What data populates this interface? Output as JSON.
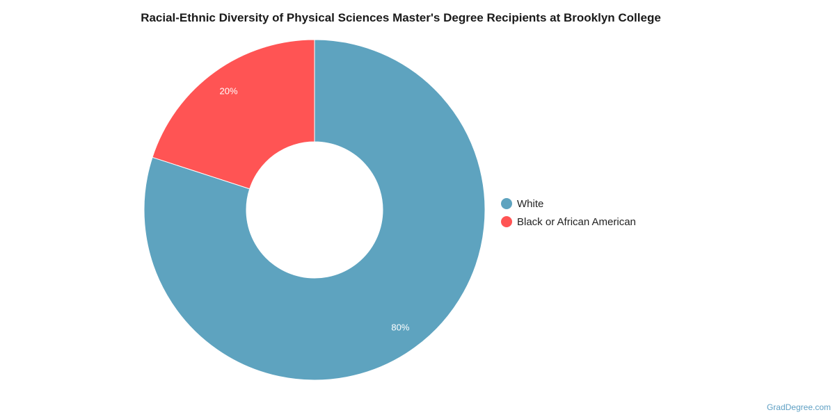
{
  "chart_data": {
    "type": "pie",
    "title": "Racial-Ethnic Diversity of Physical Sciences Master's Degree Recipients at Brooklyn College",
    "donut": true,
    "legend_position": "right",
    "slices": [
      {
        "label": "White",
        "value": 80,
        "display": "80%",
        "color": "#5ea3bf"
      },
      {
        "label": "Black or African American",
        "value": 20,
        "display": "20%",
        "color": "#ff5454"
      }
    ]
  },
  "credit": "GradDegree.com"
}
